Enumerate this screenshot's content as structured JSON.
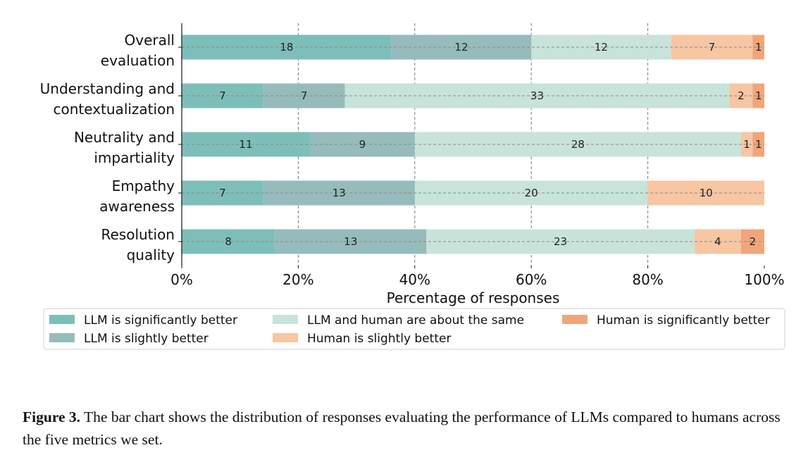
{
  "chart_data": {
    "type": "bar",
    "orientation": "horizontal",
    "stacked": true,
    "normalized": true,
    "categories": [
      "Overall\nevaluation",
      "Understanding and\ncontextualization",
      "Neutrality and\nimpartiality",
      "Empathy\nawareness",
      "Resolution\nquality"
    ],
    "series": [
      {
        "name": "LLM is significantly better",
        "color": "#7dbfb8",
        "values": [
          18,
          7,
          11,
          7,
          8
        ]
      },
      {
        "name": "LLM is slightly better",
        "color": "#96bbbb",
        "values": [
          12,
          7,
          9,
          13,
          13
        ]
      },
      {
        "name": "LLM and human are about the same",
        "color": "#c8e3da",
        "values": [
          12,
          33,
          28,
          20,
          23
        ]
      },
      {
        "name": "Human is slightly better",
        "color": "#f7c6a3",
        "values": [
          7,
          2,
          1,
          10,
          4
        ]
      },
      {
        "name": "Human is significantly better",
        "color": "#f0a67a",
        "values": [
          1,
          1,
          1,
          0,
          2
        ]
      }
    ],
    "xlabel": "Percentage of responses",
    "ylabel": "",
    "xlim": [
      0,
      100
    ],
    "xticks": [
      "0%",
      "20%",
      "40%",
      "60%",
      "80%",
      "100%"
    ],
    "grid": "vertical dashed",
    "legend_position": "bottom",
    "title": ""
  },
  "caption": {
    "label": "Figure 3.",
    "text": "The bar chart shows the distribution of responses evaluating the performance of LLMs compared to humans across the five metrics we set."
  }
}
